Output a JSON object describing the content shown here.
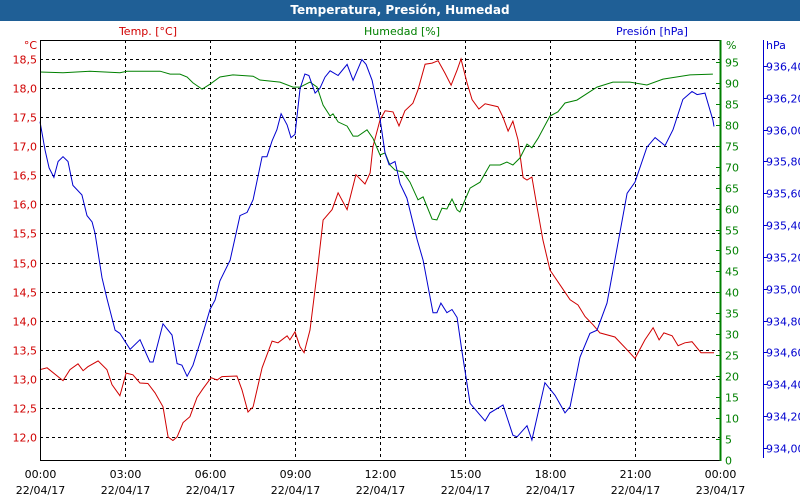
{
  "title": "Temperatura, Presión, Humedad",
  "colors": {
    "temp": "#d00000",
    "humidity": "#008000",
    "pressure": "#0000d0",
    "titlebar": "#1f5f96"
  },
  "chart_data": {
    "type": "line",
    "title": "Temperatura, Presión, Humedad",
    "xlabel": "",
    "x_unit": "hours since 22/04/17 00:00",
    "xlim": [
      0,
      24
    ],
    "x_ticks": [
      {
        "time": "00:00",
        "date": "22/04/17"
      },
      {
        "time": "03:00",
        "date": "22/04/17"
      },
      {
        "time": "06:00",
        "date": "22/04/17"
      },
      {
        "time": "09:00",
        "date": "22/04/17"
      },
      {
        "time": "12:00",
        "date": "22/04/17"
      },
      {
        "time": "15:00",
        "date": "22/04/17"
      },
      {
        "time": "18:00",
        "date": "22/04/17"
      },
      {
        "time": "21:00",
        "date": "22/04/17"
      },
      {
        "time": "00:00",
        "date": "23/04/17"
      }
    ],
    "grid": true,
    "axes": {
      "temp": {
        "label": "°C",
        "legend": "Temp. [°C]",
        "ylim": [
          11.675,
          18.825
        ],
        "ticks": [
          "18,5",
          "18,0",
          "17,5",
          "17,0",
          "16,5",
          "16,0",
          "15,5",
          "15,0",
          "14,5",
          "14,0",
          "13,5",
          "13,0",
          "12,5",
          "12,0"
        ],
        "tick_values": [
          18.5,
          18,
          17.5,
          17,
          16.5,
          16,
          15.5,
          15,
          14.5,
          14,
          13.5,
          13,
          12.5,
          12
        ]
      },
      "humidity": {
        "label": "%",
        "legend": "Humedad [%]",
        "ylim": [
          0,
          95
        ],
        "ticks": [
          "95",
          "90",
          "85",
          "80",
          "75",
          "70",
          "65",
          "60",
          "55",
          "50",
          "45",
          "40",
          "35",
          "30",
          "25",
          "20",
          "15",
          "10",
          "5",
          "0"
        ],
        "tick_values": [
          95,
          90,
          85,
          80,
          75,
          70,
          65,
          60,
          55,
          50,
          45,
          40,
          35,
          30,
          25,
          20,
          15,
          10,
          5,
          0
        ]
      },
      "pressure": {
        "label": "hPa",
        "legend": "Presión [hPa]",
        "ylim": [
          934.0,
          936.4
        ],
        "ticks": [
          "936,40",
          "936,20",
          "936,00",
          "935,80",
          "935,60",
          "935,40",
          "935,20",
          "935,00",
          "934,80",
          "934,60",
          "934,40",
          "934,20",
          "934,00"
        ],
        "tick_values": [
          936.4,
          936.2,
          936.0,
          935.8,
          935.6,
          935.4,
          935.2,
          935.0,
          934.8,
          934.6,
          934.4,
          934.2,
          934.0
        ]
      }
    },
    "series": [
      {
        "name": "Temp. [°C]",
        "axis": "temp",
        "x": [
          0,
          0.25,
          0.81,
          1.06,
          1.34,
          1.52,
          1.69,
          2.05,
          2.36,
          2.54,
          2.82,
          3.04,
          3.28,
          3.53,
          3.81,
          4.06,
          4.34,
          4.52,
          4.69,
          4.84,
          5.05,
          5.29,
          5.54,
          5.75,
          6.04,
          6.25,
          6.42,
          6.95,
          7.13,
          7.34,
          7.52,
          7.84,
          8.19,
          8.4,
          8.72,
          8.82,
          9.0,
          9.18,
          9.32,
          9.53,
          9.78,
          9.99,
          10.31,
          10.52,
          10.84,
          11.15,
          11.47,
          11.65,
          11.75,
          12.0,
          12.18,
          12.46,
          12.67,
          12.88,
          13.16,
          13.34,
          13.59,
          13.84,
          14.05,
          14.29,
          14.51,
          14.72,
          14.86,
          15.07,
          15.25,
          15.49,
          15.71,
          16.16,
          16.34,
          16.52,
          16.69,
          16.87,
          17.05,
          17.19,
          17.36,
          17.54,
          17.75,
          18.0,
          18.35,
          18.71,
          18.99,
          19.24,
          19.52,
          19.76,
          20.29,
          20.72,
          21.0,
          21.35,
          21.64,
          21.85,
          22.02,
          22.31,
          22.52,
          22.76,
          23.01,
          23.33,
          23.79
        ],
        "y": [
          13.16,
          13.19,
          12.97,
          13.16,
          13.26,
          13.14,
          13.21,
          13.31,
          13.16,
          12.9,
          12.71,
          13.1,
          13.07,
          12.93,
          12.92,
          12.76,
          12.52,
          12.0,
          11.94,
          12.0,
          12.25,
          12.35,
          12.68,
          12.83,
          13.02,
          12.98,
          13.04,
          13.05,
          12.81,
          12.43,
          12.52,
          13.19,
          13.65,
          13.62,
          13.74,
          13.67,
          13.81,
          13.55,
          13.45,
          13.84,
          14.82,
          15.73,
          15.91,
          16.2,
          15.91,
          16.51,
          16.35,
          16.54,
          16.99,
          17.45,
          17.61,
          17.59,
          17.35,
          17.61,
          17.74,
          17.97,
          18.41,
          18.43,
          18.47,
          18.26,
          18.05,
          18.31,
          18.5,
          18.09,
          17.8,
          17.64,
          17.73,
          17.68,
          17.5,
          17.26,
          17.43,
          17.11,
          16.46,
          16.42,
          16.47,
          15.96,
          15.39,
          14.87,
          14.62,
          14.36,
          14.27,
          14.07,
          13.93,
          13.79,
          13.72,
          13.5,
          13.35,
          13.67,
          13.88,
          13.67,
          13.79,
          13.74,
          13.57,
          13.62,
          13.64,
          13.45,
          13.45
        ]
      },
      {
        "name": "Humedad [%]",
        "axis": "humidity",
        "x": [
          0,
          0.81,
          1.76,
          2.82,
          3.07,
          4.24,
          4.59,
          4.94,
          5.19,
          5.4,
          5.72,
          6.0,
          6.35,
          6.81,
          7.52,
          7.76,
          8.47,
          8.93,
          9.18,
          9.53,
          9.78,
          9.99,
          10.24,
          10.34,
          10.52,
          10.84,
          11.05,
          11.22,
          11.54,
          11.75,
          12.0,
          12.18,
          12.35,
          12.53,
          12.81,
          13.06,
          13.34,
          13.52,
          13.84,
          14.01,
          14.19,
          14.36,
          14.54,
          14.72,
          14.82,
          15.18,
          15.53,
          15.88,
          16.24,
          16.48,
          16.69,
          16.94,
          17.19,
          17.36,
          17.58,
          18.0,
          18.28,
          18.53,
          18.95,
          19.66,
          20.22,
          20.82,
          21.42,
          21.99,
          22.94,
          23.75
        ],
        "y": [
          92.6,
          92.4,
          92.8,
          92.4,
          92.8,
          92.8,
          92.1,
          92.1,
          91.4,
          90.0,
          88.5,
          89.7,
          91.4,
          91.9,
          91.6,
          90.7,
          90.2,
          89.0,
          89.0,
          90.2,
          89.0,
          84.7,
          82.1,
          82.6,
          80.7,
          79.7,
          77.3,
          77.3,
          78.8,
          76.8,
          72.8,
          73.3,
          70.4,
          69.2,
          68.7,
          66.3,
          62.1,
          62.8,
          57.5,
          57.3,
          60.1,
          59.9,
          62.3,
          59.7,
          59.2,
          64.9,
          66.3,
          70.4,
          70.4,
          71.1,
          70.4,
          72.1,
          75.4,
          74.5,
          76.8,
          82.1,
          83.1,
          85.2,
          85.9,
          89.0,
          90.2,
          90.2,
          89.5,
          90.9,
          91.9,
          92.1
        ]
      },
      {
        "name": "Presión [hPa]",
        "axis": "pressure",
        "x": [
          0,
          0.18,
          0.32,
          0.49,
          0.64,
          0.81,
          0.99,
          1.16,
          1.48,
          1.66,
          1.84,
          1.94,
          2.19,
          2.36,
          2.65,
          2.82,
          3.18,
          3.53,
          3.88,
          3.99,
          4.34,
          4.66,
          4.84,
          5.01,
          5.19,
          5.4,
          5.75,
          6.0,
          6.18,
          6.35,
          6.71,
          7.06,
          7.31,
          7.52,
          7.84,
          8.01,
          8.19,
          8.36,
          8.51,
          8.72,
          8.86,
          9.0,
          9.18,
          9.35,
          9.49,
          9.71,
          9.88,
          10.06,
          10.24,
          10.52,
          10.84,
          11.05,
          11.36,
          11.51,
          11.72,
          12.0,
          12.18,
          12.32,
          12.53,
          12.71,
          12.95,
          13.31,
          13.52,
          13.87,
          14.01,
          14.15,
          14.36,
          14.54,
          14.72,
          14.89,
          15.18,
          15.71,
          15.88,
          16.34,
          16.69,
          16.84,
          17.19,
          17.36,
          17.82,
          18.18,
          18.53,
          18.71,
          19.06,
          19.41,
          19.66,
          20.01,
          20.72,
          21.0,
          21.42,
          21.71,
          22.06,
          22.34,
          22.69,
          23.01,
          23.19,
          23.47,
          23.75,
          23.79
        ],
        "y": [
          936.05,
          935.87,
          935.76,
          935.7,
          935.8,
          935.83,
          935.8,
          935.65,
          935.59,
          935.46,
          935.42,
          935.35,
          935.07,
          934.94,
          934.74,
          934.72,
          934.62,
          934.68,
          934.54,
          934.54,
          934.78,
          934.71,
          934.53,
          934.52,
          934.45,
          934.52,
          934.72,
          934.87,
          934.93,
          935.05,
          935.18,
          935.46,
          935.48,
          935.56,
          935.83,
          935.83,
          935.93,
          936.0,
          936.1,
          936.03,
          935.95,
          935.97,
          936.26,
          936.35,
          936.34,
          936.23,
          936.26,
          936.33,
          936.37,
          936.34,
          936.41,
          936.31,
          936.44,
          936.41,
          936.31,
          936.07,
          935.85,
          935.78,
          935.8,
          935.66,
          935.57,
          935.31,
          935.18,
          934.85,
          934.85,
          934.91,
          934.85,
          934.87,
          934.82,
          934.61,
          934.28,
          934.17,
          934.22,
          934.27,
          934.08,
          934.07,
          934.14,
          934.05,
          934.41,
          934.33,
          934.22,
          934.26,
          934.57,
          934.72,
          934.74,
          934.91,
          935.6,
          935.67,
          935.89,
          935.95,
          935.9,
          936.0,
          936.19,
          936.24,
          936.22,
          936.23,
          936.06,
          936.02
        ]
      }
    ]
  }
}
